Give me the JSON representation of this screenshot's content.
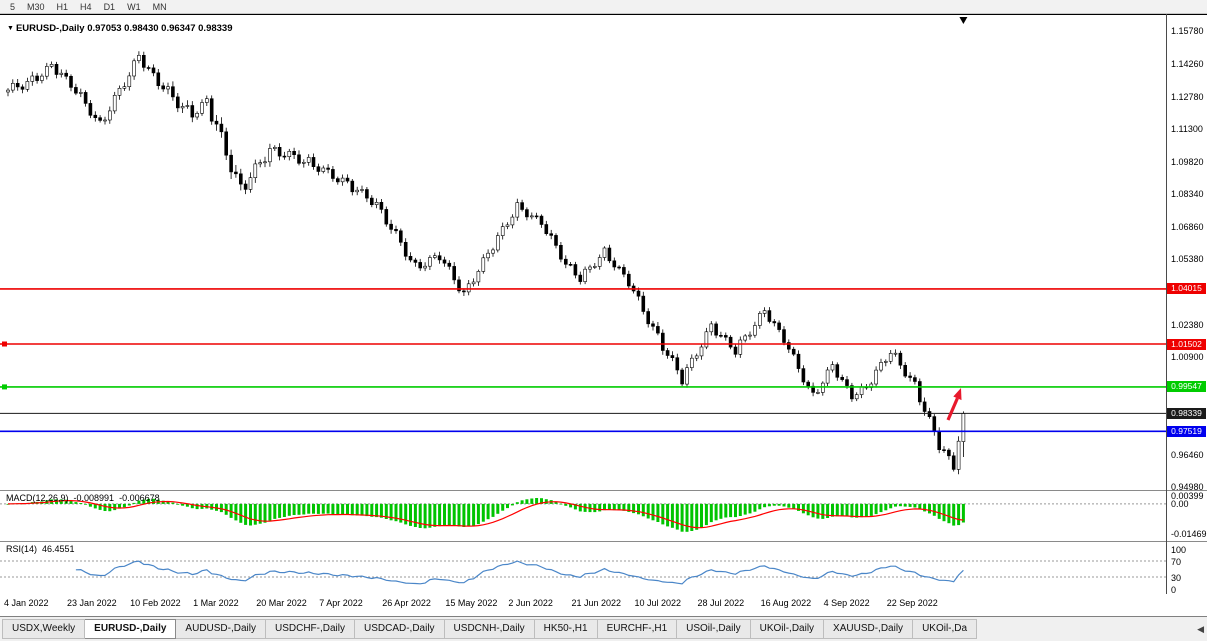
{
  "toolbar": {
    "timeframes": [
      "5",
      "M30",
      "H1",
      "H4",
      "D1",
      "W1",
      "MN"
    ]
  },
  "chart_header": {
    "icon": "▼",
    "symbol": "EURUSD-,Daily",
    "ohlc": "0.97053 0.98430 0.96347 0.98339"
  },
  "price_axis": {
    "visible_labels": [
      "1.15780",
      "1.14260",
      "1.12780",
      "1.11300",
      "1.09820",
      "1.08340",
      "1.06860",
      "1.05380",
      "1.02380",
      "1.00900",
      "0.96460",
      "0.94980"
    ]
  },
  "levels": [
    {
      "label": "1.04015",
      "value": 1.04015,
      "color": "#ee0000",
      "marker": false,
      "current": false
    },
    {
      "label": "1.01502",
      "value": 1.01502,
      "color": "#ee0000",
      "marker": true,
      "current": false
    },
    {
      "label": "0.99547",
      "value": 0.99547,
      "color": "#00cc00",
      "marker": true,
      "current": false
    },
    {
      "label": "0.98339",
      "value": 0.98339,
      "color": "#1a1a1a",
      "marker": false,
      "current": true
    },
    {
      "label": "0.97519",
      "value": 0.97519,
      "color": "#0000ee",
      "marker": false,
      "current": false
    }
  ],
  "panels": {
    "macd": {
      "label": "MACD(12,26,9)",
      "value": "-0.008991",
      "signal": "-0.006678",
      "axis_labels": [
        "0.00399",
        "0.00",
        "-0.01469"
      ],
      "range_max": 0.00399,
      "range_min": -0.01469
    },
    "rsi": {
      "label": "RSI(14)",
      "value": "46.4551",
      "axis_labels": [
        "100",
        "70",
        "30",
        "0"
      ],
      "level_lines": [
        70,
        30
      ],
      "range_max": 100,
      "range_min": 0
    }
  },
  "date_axis": [
    "4 Jan 2022",
    "23 Jan 2022",
    "10 Feb 2022",
    "1 Mar 2022",
    "20 Mar 2022",
    "7 Apr 2022",
    "26 Apr 2022",
    "15 May 2022",
    "2 Jun 2022",
    "21 Jun 2022",
    "10 Jul 2022",
    "28 Jul 2022",
    "16 Aug 2022",
    "4 Sep 2022",
    "22 Sep 2022"
  ],
  "tabs": {
    "active": "EURUSD-,Daily",
    "items": [
      "USDX,Weekly",
      "EURUSD-,Daily",
      "AUDUSD-,Daily",
      "USDCHF-,Daily",
      "USDCAD-,Daily",
      "USDCNH-,Daily",
      "HK50-,H1",
      "EURCHF-,H1",
      "USOil-,Daily",
      "UKOil-,Daily",
      "XAUUSD-,Daily",
      "UKOil-,Da"
    ],
    "scroll_arrow": "◀"
  },
  "annotations": {
    "arrow_color": "#e8192c",
    "marker_icon": "▼"
  },
  "colors": {
    "bull": "#ffffff",
    "bear": "#000000",
    "outline": "#000000",
    "macd_hist": "#00c400",
    "macd_signal": "#ff0000",
    "rsi_line": "#4a86c8",
    "chrome_bg": "#f0f0f0"
  },
  "chart_data": {
    "type": "candlestick",
    "symbol": "EURUSD-",
    "timeframe": "Daily",
    "ylim": [
      0.9498,
      1.1578
    ],
    "visible_range": [
      "4 Jan 2022",
      "30 Sep 2022"
    ],
    "last_candle": {
      "open": 0.97053,
      "high": 0.9843,
      "low": 0.96347,
      "close": 0.98339
    },
    "indicators": [
      {
        "name": "MACD",
        "params": [
          12,
          26,
          9
        ],
        "value": -0.008991,
        "signal": -0.006678
      },
      {
        "name": "RSI",
        "params": [
          14
        ],
        "value": 46.4551
      }
    ],
    "horizontal_levels": [
      1.04015,
      1.01502,
      0.99547,
      0.98339,
      0.97519
    ],
    "price_path_segments": [
      {
        "n": 7,
        "from": 1.13,
        "to": 1.136,
        "vol": 0.005
      },
      {
        "n": 3,
        "from": 1.136,
        "to": 1.142,
        "vol": 0.004
      },
      {
        "n": 5,
        "from": 1.142,
        "to": 1.131,
        "vol": 0.0045
      },
      {
        "n": 5,
        "from": 1.131,
        "to": 1.115,
        "vol": 0.0045
      },
      {
        "n": 8,
        "from": 1.115,
        "to": 1.146,
        "vol": 0.005
      },
      {
        "n": 4,
        "from": 1.146,
        "to": 1.134,
        "vol": 0.0045
      },
      {
        "n": 7,
        "from": 1.134,
        "to": 1.119,
        "vol": 0.006
      },
      {
        "n": 3,
        "from": 1.119,
        "to": 1.126,
        "vol": 0.004
      },
      {
        "n": 7,
        "from": 1.126,
        "to": 1.085,
        "vol": 0.008
      },
      {
        "n": 6,
        "from": 1.085,
        "to": 1.104,
        "vol": 0.006
      },
      {
        "n": 8,
        "from": 1.104,
        "to": 1.098,
        "vol": 0.005
      },
      {
        "n": 8,
        "from": 1.098,
        "to": 1.088,
        "vol": 0.0045
      },
      {
        "n": 6,
        "from": 1.088,
        "to": 1.079,
        "vol": 0.0045
      },
      {
        "n": 8,
        "from": 1.079,
        "to": 1.05,
        "vol": 0.005
      },
      {
        "n": 5,
        "from": 1.05,
        "to": 1.055,
        "vol": 0.0045
      },
      {
        "n": 5,
        "from": 1.055,
        "to": 1.038,
        "vol": 0.005
      },
      {
        "n": 5,
        "from": 1.038,
        "to": 1.056,
        "vol": 0.0045
      },
      {
        "n": 6,
        "from": 1.056,
        "to": 1.078,
        "vol": 0.0045
      },
      {
        "n": 5,
        "from": 1.078,
        "to": 1.07,
        "vol": 0.004
      },
      {
        "n": 5,
        "from": 1.07,
        "to": 1.052,
        "vol": 0.0045
      },
      {
        "n": 3,
        "from": 1.052,
        "to": 1.045,
        "vol": 0.004
      },
      {
        "n": 5,
        "from": 1.045,
        "to": 1.057,
        "vol": 0.004
      },
      {
        "n": 5,
        "from": 1.057,
        "to": 1.043,
        "vol": 0.004
      },
      {
        "n": 6,
        "from": 1.043,
        "to": 1.018,
        "vol": 0.005
      },
      {
        "n": 5,
        "from": 1.018,
        "to": 0.999,
        "vol": 0.005
      },
      {
        "n": 6,
        "from": 0.999,
        "to": 1.023,
        "vol": 0.0045
      },
      {
        "n": 5,
        "from": 1.023,
        "to": 1.012,
        "vol": 0.004
      },
      {
        "n": 6,
        "from": 1.012,
        "to": 1.03,
        "vol": 0.0045
      },
      {
        "n": 4,
        "from": 1.03,
        "to": 1.017,
        "vol": 0.004
      },
      {
        "n": 6,
        "from": 1.017,
        "to": 0.991,
        "vol": 0.0045
      },
      {
        "n": 4,
        "from": 0.991,
        "to": 1.005,
        "vol": 0.004
      },
      {
        "n": 4,
        "from": 1.005,
        "to": 0.991,
        "vol": 0.004
      },
      {
        "n": 3,
        "from": 0.991,
        "to": 0.995,
        "vol": 0.004
      },
      {
        "n": 5,
        "from": 0.995,
        "to": 1.012,
        "vol": 0.0045
      },
      {
        "n": 5,
        "from": 1.012,
        "to": 0.996,
        "vol": 0.0045
      },
      {
        "n": 5,
        "from": 0.996,
        "to": 0.969,
        "vol": 0.005
      },
      {
        "n": 3,
        "from": 0.969,
        "to": 0.959,
        "vol": 0.0045
      },
      {
        "n": 2,
        "from": 0.959,
        "to": 0.98339,
        "vol": 0.006
      }
    ]
  }
}
